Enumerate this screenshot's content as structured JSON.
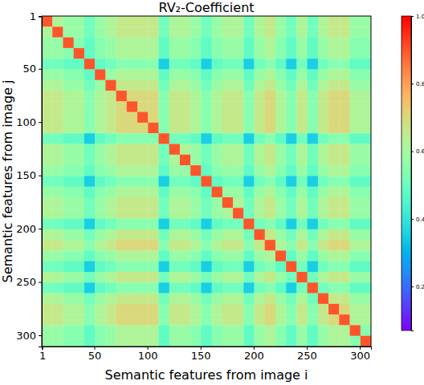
{
  "chart_data": {
    "type": "heatmap",
    "title": "RV₂-Coefficient",
    "x_label": "Semantic features from image i",
    "y_label": "Semantic features from image j",
    "xlim": [
      0.5,
      310.5
    ],
    "ylim": [
      0.5,
      310.5
    ],
    "xticks": [
      1,
      50,
      100,
      150,
      200,
      250,
      300
    ],
    "yticks": [
      1,
      50,
      100,
      150,
      200,
      250,
      300
    ],
    "x_bins": [
      0.5,
      10.5,
      20.5,
      30.5,
      40.5,
      50.5,
      60.5,
      70.5,
      80.5,
      90.5,
      100.5,
      110.5,
      120.5,
      130.5,
      140.5,
      150.5,
      160.5,
      170.5,
      180.5,
      190.5,
      200.5,
      210.5,
      220.5,
      230.5,
      240.5,
      250.5,
      260.5,
      270.5,
      280.5,
      290.5,
      300.5,
      310.5
    ],
    "y_bins": [
      0.5,
      10.5,
      20.5,
      30.5,
      40.5,
      50.5,
      60.5,
      70.5,
      80.5,
      90.5,
      100.5,
      110.5,
      120.5,
      130.5,
      140.5,
      150.5,
      160.5,
      170.5,
      180.5,
      190.5,
      200.5,
      210.5,
      220.5,
      230.5,
      240.5,
      250.5,
      260.5,
      270.5,
      280.5,
      290.5,
      300.5,
      310.5
    ],
    "colorbar": {
      "range": [
        0.07,
        1.0
      ],
      "ticks": [
        0.2,
        0.4,
        0.6,
        0.8,
        {
          "value": 1,
          "label": "1.0"
        }
      ]
    },
    "cells": [
      [
        0.9,
        0.62,
        0.58,
        0.58,
        0.51,
        0.58,
        0.62,
        0.66,
        0.66,
        0.66,
        0.66,
        0.51,
        0.62,
        0.62,
        0.58,
        0.51,
        0.58,
        0.62,
        0.62,
        0.51,
        0.62,
        0.66,
        0.58,
        0.51,
        0.62,
        0.51,
        0.62,
        0.66,
        0.66,
        0.58,
        0.58
      ],
      [
        0.62,
        0.9,
        0.58,
        0.58,
        0.51,
        0.58,
        0.62,
        0.66,
        0.66,
        0.66,
        0.66,
        0.51,
        0.62,
        0.62,
        0.58,
        0.51,
        0.58,
        0.62,
        0.62,
        0.51,
        0.62,
        0.66,
        0.58,
        0.51,
        0.62,
        0.51,
        0.62,
        0.66,
        0.66,
        0.58,
        0.58
      ],
      [
        0.58,
        0.58,
        0.9,
        0.55,
        0.48,
        0.55,
        0.58,
        0.62,
        0.62,
        0.62,
        0.62,
        0.48,
        0.58,
        0.58,
        0.55,
        0.48,
        0.55,
        0.58,
        0.58,
        0.48,
        0.58,
        0.62,
        0.55,
        0.48,
        0.58,
        0.48,
        0.58,
        0.62,
        0.62,
        0.55,
        0.55
      ],
      [
        0.58,
        0.58,
        0.55,
        0.9,
        0.48,
        0.55,
        0.58,
        0.62,
        0.62,
        0.62,
        0.62,
        0.48,
        0.58,
        0.58,
        0.55,
        0.48,
        0.55,
        0.58,
        0.58,
        0.48,
        0.58,
        0.62,
        0.55,
        0.48,
        0.58,
        0.48,
        0.58,
        0.62,
        0.62,
        0.55,
        0.55
      ],
      [
        0.51,
        0.51,
        0.48,
        0.48,
        0.9,
        0.48,
        0.51,
        0.55,
        0.55,
        0.55,
        0.55,
        0.35,
        0.51,
        0.51,
        0.48,
        0.35,
        0.48,
        0.51,
        0.51,
        0.35,
        0.51,
        0.55,
        0.48,
        0.35,
        0.51,
        0.35,
        0.51,
        0.55,
        0.55,
        0.48,
        0.48
      ],
      [
        0.58,
        0.58,
        0.55,
        0.55,
        0.48,
        0.9,
        0.58,
        0.62,
        0.62,
        0.62,
        0.62,
        0.48,
        0.58,
        0.58,
        0.55,
        0.48,
        0.55,
        0.58,
        0.58,
        0.48,
        0.58,
        0.62,
        0.55,
        0.48,
        0.58,
        0.48,
        0.58,
        0.62,
        0.62,
        0.55,
        0.55
      ],
      [
        0.62,
        0.62,
        0.58,
        0.58,
        0.51,
        0.58,
        0.9,
        0.66,
        0.66,
        0.66,
        0.66,
        0.51,
        0.62,
        0.62,
        0.58,
        0.51,
        0.58,
        0.62,
        0.62,
        0.51,
        0.62,
        0.66,
        0.58,
        0.51,
        0.62,
        0.51,
        0.62,
        0.66,
        0.66,
        0.58,
        0.58
      ],
      [
        0.66,
        0.66,
        0.62,
        0.62,
        0.55,
        0.62,
        0.66,
        0.9,
        0.7,
        0.7,
        0.7,
        0.55,
        0.66,
        0.66,
        0.62,
        0.55,
        0.62,
        0.66,
        0.66,
        0.55,
        0.66,
        0.7,
        0.62,
        0.55,
        0.66,
        0.55,
        0.66,
        0.7,
        0.7,
        0.62,
        0.62
      ],
      [
        0.66,
        0.66,
        0.62,
        0.62,
        0.55,
        0.62,
        0.66,
        0.7,
        0.9,
        0.7,
        0.7,
        0.55,
        0.66,
        0.66,
        0.62,
        0.55,
        0.62,
        0.66,
        0.66,
        0.55,
        0.66,
        0.7,
        0.62,
        0.55,
        0.66,
        0.55,
        0.66,
        0.7,
        0.7,
        0.62,
        0.62
      ],
      [
        0.66,
        0.66,
        0.62,
        0.62,
        0.55,
        0.62,
        0.66,
        0.7,
        0.7,
        0.9,
        0.7,
        0.55,
        0.66,
        0.66,
        0.62,
        0.55,
        0.62,
        0.66,
        0.66,
        0.55,
        0.66,
        0.7,
        0.62,
        0.55,
        0.66,
        0.55,
        0.66,
        0.7,
        0.7,
        0.62,
        0.62
      ],
      [
        0.66,
        0.66,
        0.62,
        0.62,
        0.55,
        0.62,
        0.66,
        0.7,
        0.7,
        0.7,
        0.9,
        0.55,
        0.66,
        0.66,
        0.62,
        0.55,
        0.62,
        0.66,
        0.66,
        0.55,
        0.66,
        0.7,
        0.62,
        0.55,
        0.66,
        0.55,
        0.66,
        0.7,
        0.7,
        0.62,
        0.62
      ],
      [
        0.51,
        0.51,
        0.48,
        0.48,
        0.35,
        0.48,
        0.51,
        0.55,
        0.55,
        0.55,
        0.55,
        0.9,
        0.51,
        0.51,
        0.48,
        0.35,
        0.48,
        0.51,
        0.51,
        0.35,
        0.51,
        0.55,
        0.48,
        0.35,
        0.51,
        0.35,
        0.51,
        0.55,
        0.55,
        0.48,
        0.48
      ],
      [
        0.62,
        0.62,
        0.58,
        0.58,
        0.51,
        0.58,
        0.62,
        0.66,
        0.66,
        0.66,
        0.66,
        0.51,
        0.9,
        0.62,
        0.58,
        0.51,
        0.58,
        0.62,
        0.62,
        0.51,
        0.62,
        0.66,
        0.58,
        0.51,
        0.62,
        0.51,
        0.62,
        0.66,
        0.66,
        0.58,
        0.58
      ],
      [
        0.62,
        0.62,
        0.58,
        0.58,
        0.51,
        0.58,
        0.62,
        0.66,
        0.66,
        0.66,
        0.66,
        0.51,
        0.62,
        0.9,
        0.58,
        0.51,
        0.58,
        0.62,
        0.62,
        0.51,
        0.62,
        0.66,
        0.58,
        0.51,
        0.62,
        0.51,
        0.62,
        0.66,
        0.66,
        0.58,
        0.58
      ],
      [
        0.58,
        0.58,
        0.55,
        0.55,
        0.48,
        0.55,
        0.58,
        0.62,
        0.62,
        0.62,
        0.62,
        0.48,
        0.58,
        0.58,
        0.9,
        0.48,
        0.55,
        0.58,
        0.58,
        0.48,
        0.58,
        0.62,
        0.55,
        0.48,
        0.58,
        0.48,
        0.58,
        0.62,
        0.62,
        0.55,
        0.55
      ],
      [
        0.51,
        0.51,
        0.48,
        0.48,
        0.35,
        0.48,
        0.51,
        0.55,
        0.55,
        0.55,
        0.55,
        0.35,
        0.51,
        0.51,
        0.48,
        0.9,
        0.48,
        0.51,
        0.51,
        0.35,
        0.51,
        0.55,
        0.48,
        0.35,
        0.51,
        0.35,
        0.51,
        0.55,
        0.55,
        0.48,
        0.48
      ],
      [
        0.58,
        0.58,
        0.55,
        0.55,
        0.48,
        0.55,
        0.58,
        0.62,
        0.62,
        0.62,
        0.62,
        0.48,
        0.58,
        0.58,
        0.55,
        0.48,
        0.9,
        0.58,
        0.58,
        0.48,
        0.58,
        0.62,
        0.55,
        0.48,
        0.58,
        0.48,
        0.58,
        0.62,
        0.62,
        0.55,
        0.55
      ],
      [
        0.62,
        0.62,
        0.58,
        0.58,
        0.51,
        0.58,
        0.62,
        0.66,
        0.66,
        0.66,
        0.66,
        0.51,
        0.62,
        0.62,
        0.58,
        0.51,
        0.58,
        0.9,
        0.62,
        0.51,
        0.62,
        0.66,
        0.58,
        0.51,
        0.62,
        0.51,
        0.62,
        0.66,
        0.66,
        0.58,
        0.58
      ],
      [
        0.62,
        0.62,
        0.58,
        0.58,
        0.51,
        0.58,
        0.62,
        0.66,
        0.66,
        0.66,
        0.66,
        0.51,
        0.62,
        0.62,
        0.58,
        0.51,
        0.58,
        0.62,
        0.9,
        0.51,
        0.62,
        0.66,
        0.58,
        0.51,
        0.62,
        0.51,
        0.62,
        0.66,
        0.66,
        0.58,
        0.58
      ],
      [
        0.51,
        0.51,
        0.48,
        0.48,
        0.35,
        0.48,
        0.51,
        0.55,
        0.55,
        0.55,
        0.55,
        0.35,
        0.51,
        0.51,
        0.48,
        0.35,
        0.48,
        0.51,
        0.51,
        0.9,
        0.51,
        0.55,
        0.48,
        0.35,
        0.51,
        0.35,
        0.51,
        0.55,
        0.55,
        0.48,
        0.48
      ],
      [
        0.62,
        0.62,
        0.58,
        0.58,
        0.51,
        0.58,
        0.62,
        0.66,
        0.66,
        0.66,
        0.66,
        0.51,
        0.62,
        0.62,
        0.58,
        0.51,
        0.58,
        0.62,
        0.62,
        0.51,
        0.9,
        0.66,
        0.58,
        0.51,
        0.62,
        0.51,
        0.62,
        0.66,
        0.66,
        0.58,
        0.58
      ],
      [
        0.66,
        0.66,
        0.62,
        0.62,
        0.55,
        0.62,
        0.66,
        0.7,
        0.7,
        0.7,
        0.7,
        0.55,
        0.66,
        0.66,
        0.62,
        0.55,
        0.62,
        0.66,
        0.66,
        0.55,
        0.66,
        0.9,
        0.62,
        0.55,
        0.66,
        0.55,
        0.66,
        0.7,
        0.7,
        0.62,
        0.62
      ],
      [
        0.58,
        0.58,
        0.55,
        0.55,
        0.48,
        0.55,
        0.58,
        0.62,
        0.62,
        0.62,
        0.62,
        0.48,
        0.58,
        0.58,
        0.55,
        0.48,
        0.55,
        0.58,
        0.58,
        0.48,
        0.58,
        0.62,
        0.9,
        0.48,
        0.58,
        0.48,
        0.58,
        0.62,
        0.62,
        0.55,
        0.55
      ],
      [
        0.51,
        0.51,
        0.48,
        0.48,
        0.35,
        0.48,
        0.51,
        0.55,
        0.55,
        0.55,
        0.55,
        0.35,
        0.51,
        0.51,
        0.48,
        0.35,
        0.48,
        0.51,
        0.51,
        0.35,
        0.51,
        0.55,
        0.48,
        0.9,
        0.51,
        0.35,
        0.51,
        0.55,
        0.55,
        0.48,
        0.48
      ],
      [
        0.62,
        0.62,
        0.58,
        0.58,
        0.51,
        0.58,
        0.62,
        0.66,
        0.66,
        0.66,
        0.66,
        0.51,
        0.62,
        0.62,
        0.58,
        0.51,
        0.58,
        0.62,
        0.62,
        0.51,
        0.62,
        0.66,
        0.58,
        0.51,
        0.9,
        0.51,
        0.62,
        0.66,
        0.66,
        0.58,
        0.58
      ],
      [
        0.51,
        0.51,
        0.48,
        0.48,
        0.35,
        0.48,
        0.51,
        0.55,
        0.55,
        0.55,
        0.55,
        0.35,
        0.51,
        0.51,
        0.48,
        0.35,
        0.48,
        0.51,
        0.51,
        0.35,
        0.51,
        0.55,
        0.48,
        0.35,
        0.51,
        0.9,
        0.51,
        0.55,
        0.55,
        0.48,
        0.48
      ],
      [
        0.62,
        0.62,
        0.58,
        0.58,
        0.51,
        0.58,
        0.62,
        0.66,
        0.66,
        0.66,
        0.66,
        0.51,
        0.62,
        0.62,
        0.58,
        0.51,
        0.58,
        0.62,
        0.62,
        0.51,
        0.62,
        0.66,
        0.58,
        0.51,
        0.62,
        0.51,
        0.9,
        0.66,
        0.66,
        0.58,
        0.58
      ],
      [
        0.66,
        0.66,
        0.62,
        0.62,
        0.55,
        0.62,
        0.66,
        0.7,
        0.7,
        0.7,
        0.7,
        0.55,
        0.66,
        0.66,
        0.62,
        0.55,
        0.62,
        0.66,
        0.66,
        0.55,
        0.66,
        0.7,
        0.62,
        0.55,
        0.66,
        0.55,
        0.66,
        0.9,
        0.7,
        0.62,
        0.62
      ],
      [
        0.66,
        0.66,
        0.62,
        0.62,
        0.55,
        0.62,
        0.66,
        0.7,
        0.7,
        0.7,
        0.7,
        0.55,
        0.66,
        0.66,
        0.62,
        0.55,
        0.62,
        0.66,
        0.66,
        0.55,
        0.66,
        0.7,
        0.62,
        0.55,
        0.66,
        0.55,
        0.66,
        0.7,
        0.9,
        0.62,
        0.62
      ],
      [
        0.58,
        0.58,
        0.55,
        0.55,
        0.48,
        0.55,
        0.58,
        0.62,
        0.62,
        0.62,
        0.62,
        0.48,
        0.58,
        0.58,
        0.55,
        0.48,
        0.55,
        0.58,
        0.58,
        0.48,
        0.58,
        0.62,
        0.55,
        0.48,
        0.58,
        0.48,
        0.58,
        0.62,
        0.62,
        0.9,
        0.55
      ],
      [
        0.58,
        0.58,
        0.55,
        0.55,
        0.48,
        0.55,
        0.58,
        0.62,
        0.62,
        0.62,
        0.62,
        0.48,
        0.58,
        0.58,
        0.55,
        0.48,
        0.55,
        0.58,
        0.58,
        0.48,
        0.58,
        0.62,
        0.55,
        0.48,
        0.58,
        0.48,
        0.58,
        0.62,
        0.62,
        0.55,
        0.9
      ]
    ]
  }
}
